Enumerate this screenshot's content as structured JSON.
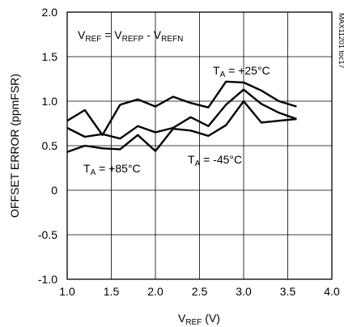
{
  "chart_data": {
    "type": "line",
    "title": "",
    "xlabel": {
      "main": "V",
      "sub": "REF",
      "suffix": " (V)"
    },
    "ylabel": "OFFSET ERROR (ppmFSR)",
    "xlim": [
      1.0,
      4.0
    ],
    "ylim": [
      -1.0,
      2.0
    ],
    "xticks": [
      "1.0",
      "1.5",
      "2.0",
      "2.5",
      "3.0",
      "3.5",
      "4.0"
    ],
    "yticks": [
      "2.0",
      "1.5",
      "1.0",
      "0.5",
      "0",
      "-0.5",
      "-1.0"
    ],
    "grid": true,
    "series": [
      {
        "name": "TA = +25°C",
        "x": [
          1.0,
          1.2,
          1.4,
          1.6,
          1.8,
          2.0,
          2.2,
          2.4,
          2.6,
          2.8,
          3.0,
          3.2,
          3.4,
          3.6
        ],
        "y": [
          0.78,
          0.9,
          0.62,
          0.96,
          1.02,
          0.94,
          1.05,
          0.98,
          0.93,
          1.22,
          1.21,
          1.12,
          1.0,
          0.94
        ]
      },
      {
        "name": "TA = -45°C",
        "x": [
          1.0,
          1.2,
          1.4,
          1.6,
          1.8,
          2.0,
          2.2,
          2.4,
          2.6,
          2.8,
          3.0,
          3.2,
          3.4,
          3.6
        ],
        "y": [
          0.7,
          0.6,
          0.63,
          0.58,
          0.72,
          0.65,
          0.7,
          0.82,
          0.72,
          0.96,
          1.13,
          0.97,
          0.87,
          0.8
        ]
      },
      {
        "name": "TA = +85°C",
        "x": [
          1.0,
          1.2,
          1.4,
          1.6,
          1.8,
          2.0,
          2.2,
          2.4,
          2.6,
          2.8,
          3.0,
          3.2,
          3.4,
          3.6
        ],
        "y": [
          0.43,
          0.5,
          0.47,
          0.46,
          0.62,
          0.44,
          0.69,
          0.67,
          0.61,
          0.73,
          1.0,
          0.76,
          0.78,
          0.8
        ]
      }
    ],
    "annotations": [
      {
        "id": "vref-formula",
        "parts": [
          "V",
          "REF",
          " = V",
          "REFP",
          " - V",
          "REFN"
        ]
      },
      {
        "id": "label-25",
        "parts": [
          "T",
          "A",
          " = +25°C"
        ]
      },
      {
        "id": "label-85",
        "parts": [
          "T",
          "A",
          " = +85°C"
        ]
      },
      {
        "id": "label-m45",
        "parts": [
          "T",
          "A",
          " = -45°C"
        ]
      }
    ],
    "watermark": "MAX11201 toc17"
  }
}
